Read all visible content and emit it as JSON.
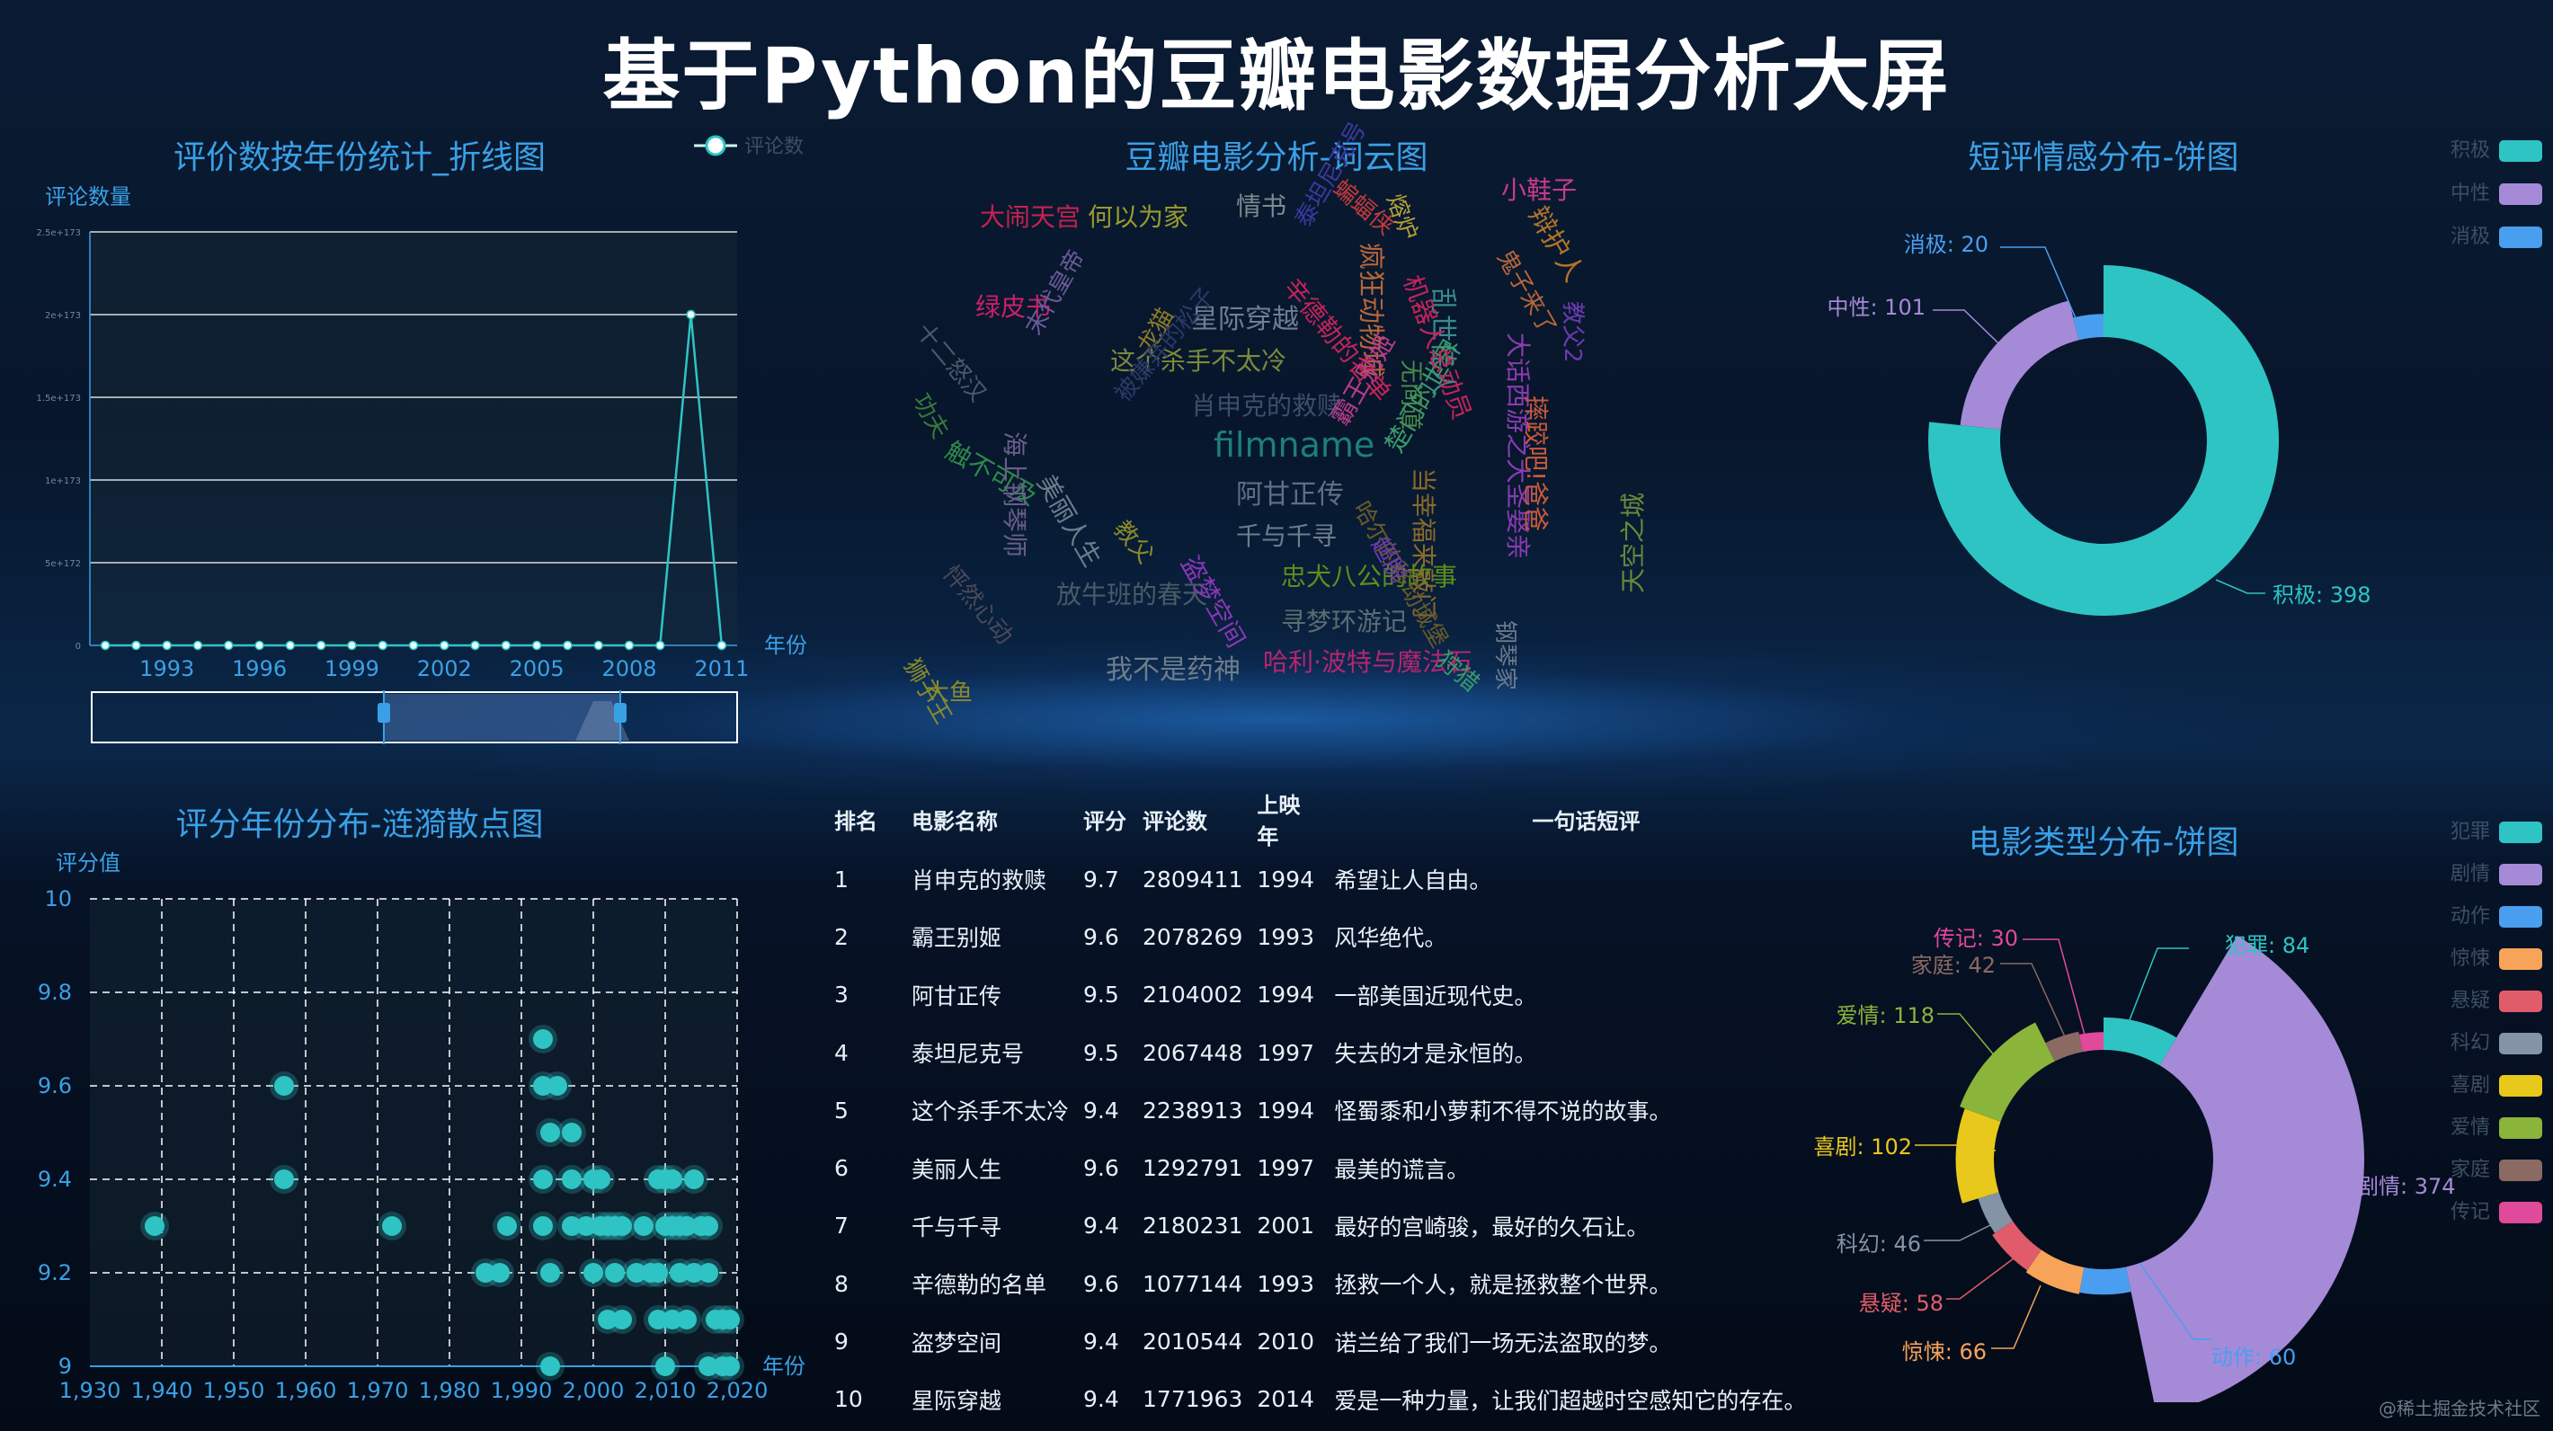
{
  "page_title": "基于Python的豆瓣电影数据分析大屏",
  "colors": {
    "accent": "#2ec4c4",
    "title": "#3aa0e6"
  },
  "line_chart": {
    "title": "评价数按年份统计_折线图",
    "legend": "评论数",
    "ylabel": "评论数量",
    "xlabel": "年份",
    "x_ticks": [
      "1993",
      "1996",
      "1999",
      "2002",
      "2005",
      "2008",
      "2011"
    ],
    "y_ticks": [
      "0",
      "5e+172",
      "1e+173",
      "1.5e+173",
      "2e+173",
      "2.5e+173"
    ],
    "ylim": [
      0,
      2.5
    ],
    "points": [
      0,
      0,
      0,
      0,
      0,
      0,
      0,
      0,
      0,
      0,
      0,
      0,
      0,
      0,
      0,
      0,
      0,
      0,
      0,
      2,
      0
    ],
    "peak_index": 19
  },
  "wordcloud": {
    "title": "豆瓣电影分析-词云图",
    "words": [
      {
        "t": "大闹天宫",
        "c": "#c6224d",
        "s": 28
      },
      {
        "t": "何以为家",
        "c": "#9a9b2a",
        "s": 28
      },
      {
        "t": "情书",
        "c": "#7d8b8e",
        "s": 28
      },
      {
        "t": "小鞋子",
        "c": "#c93a8a",
        "s": 28
      },
      {
        "t": "辩护人",
        "c": "#b3742c",
        "s": 30
      },
      {
        "t": "绿皮书",
        "c": "#c9206a",
        "s": 28
      },
      {
        "t": "星际穿越",
        "c": "#6f7f92",
        "s": 30
      },
      {
        "t": "这个杀手不太冷",
        "c": "#7b8a3d",
        "s": 28
      },
      {
        "t": "肖申克的救赎",
        "c": "#3b4f6a",
        "s": 28
      },
      {
        "t": "filmname",
        "c": "#1e7f7a",
        "s": 38
      },
      {
        "t": "阿甘正传",
        "c": "#5f6f85",
        "s": 30
      },
      {
        "t": "千与千寻",
        "c": "#6d7e8c",
        "s": 28
      },
      {
        "t": "忠犬八公的故事",
        "c": "#5b8f1c",
        "s": 28
      },
      {
        "t": "放牛班的春天",
        "c": "#4b5b68",
        "s": 28
      },
      {
        "t": "寻梦环游记",
        "c": "#5b6e70",
        "s": 28
      },
      {
        "t": "我不是药神",
        "c": "#6d7e8c",
        "s": 30
      },
      {
        "t": "哈利·波特与魔法石",
        "c": "#b4266f",
        "s": 28
      },
      {
        "t": "疯狂动物城",
        "c": "#b6663a",
        "s": 30
      },
      {
        "t": "辛德勒的名单",
        "c": "#c2245b",
        "s": 28
      },
      {
        "t": "乱世佳人",
        "c": "#3a8a8a",
        "s": 30
      },
      {
        "t": "大话西游之大圣娶亲",
        "c": "#8a3cb0",
        "s": 28
      },
      {
        "t": "摔跤吧!爸爸",
        "c": "#c85a3a",
        "s": 28
      },
      {
        "t": "触不可及",
        "c": "#2e8a4a",
        "s": 28
      },
      {
        "t": "海上钢琴师",
        "c": "#6a5f8a",
        "s": 28
      },
      {
        "t": "美丽人生",
        "c": "#6d7e8c",
        "s": 28
      },
      {
        "t": "盗梦空间",
        "c": "#8a36b8",
        "s": 28
      },
      {
        "t": "霸王别姬",
        "c": "#b83a8a",
        "s": 28
      },
      {
        "t": "楚门的世界",
        "c": "#3a9a6a",
        "s": 28
      },
      {
        "t": "当幸福来敲门",
        "c": "#8a6a2a",
        "s": 28
      },
      {
        "t": "天空之城",
        "c": "#6a8a3a",
        "s": 28
      },
      {
        "t": "钢琴家",
        "c": "#6a7a8a",
        "s": 26
      },
      {
        "t": "狩猎",
        "c": "#3a9a6a",
        "s": 26
      },
      {
        "t": "狮子王",
        "c": "#8a8a2a",
        "s": 26
      },
      {
        "t": "大鱼",
        "c": "#8a8a2a",
        "s": 26
      },
      {
        "t": "功夫",
        "c": "#3a7a3a",
        "s": 26
      },
      {
        "t": "教父",
        "c": "#8a8a2a",
        "s": 26
      },
      {
        "t": "十二怒汉",
        "c": "#4a5a6a",
        "s": 26
      },
      {
        "t": "末代皇帝",
        "c": "#6a5a9a",
        "s": 26
      },
      {
        "t": "龙猫",
        "c": "#8a7a2a",
        "s": 26
      },
      {
        "t": "机器人总动员",
        "c": "#c2245b",
        "s": 28
      },
      {
        "t": "蝙蝠侠",
        "c": "#c23a3a",
        "s": 26
      },
      {
        "t": "鬼子来了",
        "c": "#b6663a",
        "s": 26
      },
      {
        "t": "教父2",
        "c": "#6a3ab0",
        "s": 26
      },
      {
        "t": "无间道",
        "c": "#4a8a4a",
        "s": 26
      },
      {
        "t": "哈尔的移动城堡",
        "c": "#6a5a2a",
        "s": 26
      },
      {
        "t": "怦然心动",
        "c": "#4a4a5a",
        "s": 26
      },
      {
        "t": "泰坦尼克号",
        "c": "#3a3aa0",
        "s": 26
      },
      {
        "t": "熔炉",
        "c": "#b6a03a",
        "s": 26
      },
      {
        "t": "超脱",
        "c": "#6a3ab0",
        "s": 26
      },
      {
        "t": "被嫌弃的松子",
        "c": "#2a3a6a",
        "s": 26
      }
    ]
  },
  "sentiment_pie": {
    "title": "短评情感分布-饼图",
    "slices": [
      {
        "name": "积极",
        "value": 398,
        "label": "积极: 398",
        "color": "#2ec4c4"
      },
      {
        "name": "中性",
        "value": 101,
        "label": "中性: 101",
        "color": "#a58ad8"
      },
      {
        "name": "消极",
        "value": 20,
        "label": "消极: 20",
        "color": "#4a9ef0"
      }
    ]
  },
  "scatter": {
    "title": "评分年份分布-涟漪散点图",
    "ylabel": "评分值",
    "xlabel": "年份",
    "x_ticks": [
      "1,930",
      "1,940",
      "1,950",
      "1,960",
      "1,970",
      "1,980",
      "1,990",
      "2,000",
      "2,010",
      "2,020"
    ],
    "y_ticks": [
      "9",
      "9.2",
      "9.4",
      "9.6",
      "9.8",
      "10"
    ],
    "xlim": [
      1930,
      2020
    ],
    "ylim": [
      9,
      10
    ],
    "points": [
      [
        1939,
        9.3
      ],
      [
        1957,
        9.6
      ],
      [
        1957,
        9.4
      ],
      [
        1972,
        9.3
      ],
      [
        1985,
        9.2
      ],
      [
        1987,
        9.2
      ],
      [
        1988,
        9.3
      ],
      [
        1993,
        9.7
      ],
      [
        1993,
        9.6
      ],
      [
        1993,
        9.4
      ],
      [
        1993,
        9.3
      ],
      [
        1994,
        9.5
      ],
      [
        1994,
        9.2
      ],
      [
        1994,
        9.0
      ],
      [
        1995,
        9.6
      ],
      [
        1997,
        9.5
      ],
      [
        1997,
        9.4
      ],
      [
        1997,
        9.3
      ],
      [
        1999,
        9.3
      ],
      [
        2000,
        9.4
      ],
      [
        2000,
        9.2
      ],
      [
        2001,
        9.3
      ],
      [
        2001,
        9.4
      ],
      [
        2002,
        9.3
      ],
      [
        2002,
        9.1
      ],
      [
        2003,
        9.3
      ],
      [
        2003,
        9.2
      ],
      [
        2004,
        9.1
      ],
      [
        2004,
        9.3
      ],
      [
        2006,
        9.2
      ],
      [
        2007,
        9.3
      ],
      [
        2008,
        9.2
      ],
      [
        2009,
        9.4
      ],
      [
        2009,
        9.2
      ],
      [
        2009,
        9.1
      ],
      [
        2010,
        9.4
      ],
      [
        2010,
        9.3
      ],
      [
        2010,
        9.0
      ],
      [
        2011,
        9.3
      ],
      [
        2011,
        9.4
      ],
      [
        2011,
        9.1
      ],
      [
        2012,
        9.2
      ],
      [
        2012,
        9.3
      ],
      [
        2013,
        9.1
      ],
      [
        2013,
        9.3
      ],
      [
        2014,
        9.4
      ],
      [
        2014,
        9.2
      ],
      [
        2015,
        9.3
      ],
      [
        2016,
        9.3
      ],
      [
        2016,
        9.2
      ],
      [
        2016,
        9.0
      ],
      [
        2017,
        9.1
      ],
      [
        2018,
        9.1
      ],
      [
        2018,
        9.0
      ],
      [
        2019,
        9.1
      ],
      [
        2019,
        9.0
      ]
    ]
  },
  "table": {
    "headers": [
      "排名",
      "电影名称",
      "评分",
      "评论数",
      "上映年",
      "一句话短评"
    ],
    "rows": [
      [
        "1",
        "肖申克的救赎",
        "9.7",
        "2809411",
        "1994",
        "希望让人自由。"
      ],
      [
        "2",
        "霸王别姬",
        "9.6",
        "2078269",
        "1993",
        "风华绝代。"
      ],
      [
        "3",
        "阿甘正传",
        "9.5",
        "2104002",
        "1994",
        "一部美国近现代史。"
      ],
      [
        "4",
        "泰坦尼克号",
        "9.5",
        "2067448",
        "1997",
        "失去的才是永恒的。"
      ],
      [
        "5",
        "这个杀手不太冷",
        "9.4",
        "2238913",
        "1994",
        "怪蜀黍和小萝莉不得不说的故事。"
      ],
      [
        "6",
        "美丽人生",
        "9.6",
        "1292791",
        "1997",
        "最美的谎言。"
      ],
      [
        "7",
        "千与千寻",
        "9.4",
        "2180231",
        "2001",
        "最好的宫崎骏，最好的久石让。"
      ],
      [
        "8",
        "辛德勒的名单",
        "9.6",
        "1077144",
        "1993",
        "拯救一个人，就是拯救整个世界。"
      ],
      [
        "9",
        "盗梦空间",
        "9.4",
        "2010544",
        "2010",
        "诺兰给了我们一场无法盗取的梦。"
      ],
      [
        "10",
        "星际穿越",
        "9.4",
        "1771963",
        "2014",
        "爱是一种力量，让我们超越时空感知它的存在。"
      ]
    ]
  },
  "genre_pie": {
    "title": "电影类型分布-饼图",
    "slices": [
      {
        "name": "犯罪",
        "value": 84,
        "label": "犯罪: 84",
        "color": "#2ec4c4"
      },
      {
        "name": "剧情",
        "value": 374,
        "label": "剧情: 374",
        "color": "#a58ad8"
      },
      {
        "name": "动作",
        "value": 60,
        "label": "动作: 60",
        "color": "#4a9ef0"
      },
      {
        "name": "惊悚",
        "value": 66,
        "label": "惊悚: 66",
        "color": "#f7a45a"
      },
      {
        "name": "悬疑",
        "value": 58,
        "label": "悬疑: 58",
        "color": "#e05c6a"
      },
      {
        "name": "科幻",
        "value": 46,
        "label": "科幻: 46",
        "color": "#8494a6"
      },
      {
        "name": "喜剧",
        "value": 102,
        "label": "喜剧: 102",
        "color": "#e8c81a"
      },
      {
        "name": "爱情",
        "value": 118,
        "label": "爱情: 118",
        "color": "#8ab43a"
      },
      {
        "name": "家庭",
        "value": 42,
        "label": "家庭: 42",
        "color": "#8a6a62"
      },
      {
        "name": "传记",
        "value": 30,
        "label": "传记: 30",
        "color": "#e04a9a"
      }
    ]
  },
  "watermark": "@稀土掘金技术社区"
}
